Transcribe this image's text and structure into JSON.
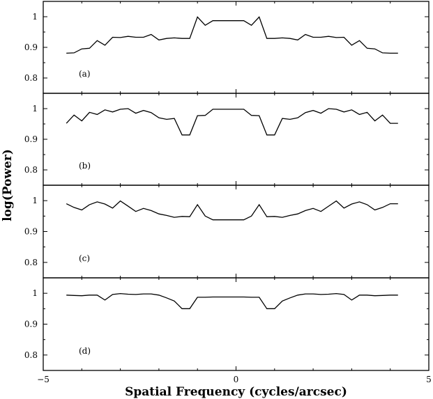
{
  "chart_data": {
    "type": "line",
    "xlabel": "Spatial Frequency (cycles/arcsec)",
    "ylabel": "log(Power)",
    "xlim": [
      -5,
      5
    ],
    "ylim": [
      0.75,
      1.05
    ],
    "x_ticks": [
      -5,
      0,
      5
    ],
    "x_tick_labels": [
      "−5",
      "0",
      "5"
    ],
    "y_ticks": [
      0.8,
      0.9,
      1.0
    ],
    "y_tick_labels": [
      "0.8",
      "0.9",
      "1"
    ],
    "grid": false,
    "x": [
      -4.4,
      -4.2,
      -4.0,
      -3.8,
      -3.6,
      -3.4,
      -3.2,
      -3.0,
      -2.8,
      -2.6,
      -2.4,
      -2.2,
      -2.0,
      -1.8,
      -1.6,
      -1.4,
      -1.2,
      -1.0,
      -0.8,
      -0.6,
      -0.4,
      -0.2,
      0.0,
      0.2,
      0.4,
      0.6,
      0.8,
      1.0,
      1.2,
      1.4,
      1.6,
      1.8,
      2.0,
      2.2,
      2.4,
      2.6,
      2.8,
      3.0,
      3.2,
      3.4,
      3.6,
      3.8,
      4.0,
      4.2
    ],
    "panels": [
      {
        "label": "(a)",
        "values": [
          0.881,
          0.882,
          0.895,
          0.897,
          0.922,
          0.907,
          0.933,
          0.932,
          0.936,
          0.933,
          0.933,
          0.942,
          0.924,
          0.929,
          0.931,
          0.929,
          0.929,
          0.999,
          0.972,
          0.987,
          0.987,
          0.987,
          0.987,
          0.987,
          0.972,
          0.999,
          0.929,
          0.929,
          0.931,
          0.929,
          0.924,
          0.942,
          0.933,
          0.933,
          0.936,
          0.932,
          0.933,
          0.907,
          0.922,
          0.897,
          0.895,
          0.882,
          0.881,
          0.881
        ]
      },
      {
        "label": "(b)",
        "values": [
          0.952,
          0.979,
          0.96,
          0.988,
          0.981,
          0.996,
          0.989,
          0.998,
          1.0,
          0.985,
          0.994,
          0.987,
          0.97,
          0.965,
          0.968,
          0.914,
          0.914,
          0.977,
          0.978,
          0.998,
          0.998,
          0.998,
          0.998,
          0.998,
          0.978,
          0.977,
          0.914,
          0.914,
          0.968,
          0.965,
          0.97,
          0.987,
          0.994,
          0.985,
          1.0,
          0.998,
          0.989,
          0.996,
          0.981,
          0.988,
          0.96,
          0.979,
          0.952,
          0.952
        ]
      },
      {
        "label": "(c)",
        "values": [
          0.99,
          0.978,
          0.97,
          0.987,
          0.996,
          0.989,
          0.976,
          0.999,
          0.982,
          0.965,
          0.975,
          0.968,
          0.957,
          0.952,
          0.946,
          0.949,
          0.948,
          0.987,
          0.95,
          0.938,
          0.938,
          0.938,
          0.938,
          0.938,
          0.95,
          0.987,
          0.948,
          0.949,
          0.946,
          0.952,
          0.957,
          0.968,
          0.975,
          0.965,
          0.982,
          0.999,
          0.976,
          0.989,
          0.996,
          0.987,
          0.97,
          0.978,
          0.99,
          0.99
        ]
      },
      {
        "label": "(d)",
        "values": [
          0.994,
          0.993,
          0.992,
          0.994,
          0.994,
          0.978,
          0.996,
          0.999,
          0.997,
          0.996,
          0.998,
          0.998,
          0.994,
          0.985,
          0.975,
          0.95,
          0.95,
          0.987,
          0.987,
          0.988,
          0.988,
          0.988,
          0.988,
          0.988,
          0.987,
          0.987,
          0.95,
          0.95,
          0.975,
          0.985,
          0.994,
          0.998,
          0.998,
          0.996,
          0.997,
          0.999,
          0.996,
          0.978,
          0.994,
          0.994,
          0.992,
          0.993,
          0.994,
          0.994
        ]
      }
    ]
  }
}
